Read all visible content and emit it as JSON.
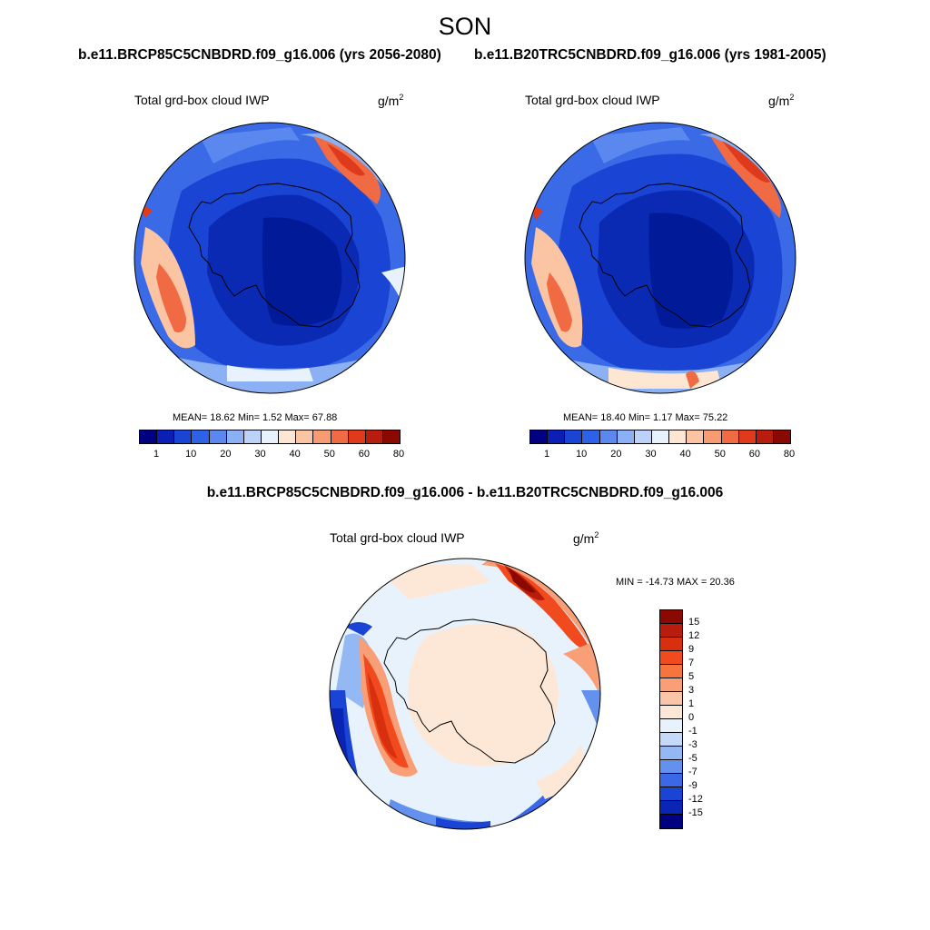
{
  "season": "SON",
  "case1_title": "b.e11.BRCP85C5CNBDRD.f09_g16.006 (yrs 2056-2080)",
  "case2_title": "b.e11.B20TRC5CNBDRD.f09_g16.006 (yrs 1981-2005)",
  "diff_title": "b.e11.BRCP85C5CNBDRD.f09_g16.006 - b.e11.B20TRC5CNBDRD.f09_g16.006",
  "panels": {
    "left": {
      "variable": "Total grd-box cloud IWP",
      "units": "g/m",
      "units_sup": "2",
      "stats": "MEAN=  18.62  Min=    1.52  Max=  67.88"
    },
    "right": {
      "variable": "Total grd-box cloud IWP",
      "units": "g/m",
      "units_sup": "2",
      "stats": "MEAN=  18.40  Min=    1.17  Max=  75.22"
    },
    "diff": {
      "variable": "Total grd-box cloud IWP",
      "units": "g/m",
      "units_sup": "2",
      "stats": "MIN = -14.73 MAX =  20.36"
    }
  },
  "abs_colorbar": {
    "labels": [
      "1",
      "10",
      "20",
      "30",
      "40",
      "50",
      "60",
      "80"
    ],
    "colors": [
      "#000080",
      "#0a1fb4",
      "#1a44d4",
      "#2e62e6",
      "#5a88ee",
      "#8cb0f4",
      "#bcd2f8",
      "#e8f2fc",
      "#fde6d2",
      "#fbc4a2",
      "#f89a72",
      "#f06a44",
      "#e03a1c",
      "#b81c0c",
      "#8a0a02"
    ]
  },
  "diff_colorbar": {
    "labels": [
      "15",
      "12",
      "9",
      "7",
      "5",
      "3",
      "1",
      "0",
      "-1",
      "-3",
      "-5",
      "-7",
      "-9",
      "-12",
      "-15"
    ],
    "colors": [
      "#8a0a02",
      "#b81c0c",
      "#d8300e",
      "#f04a1e",
      "#f6743e",
      "#f99f78",
      "#fbc6a8",
      "#fde8d8",
      "#e8f2fc",
      "#c4daf8",
      "#94b8f4",
      "#6490ee",
      "#3a68e6",
      "#1a44d4",
      "#0a24b4",
      "#000080"
    ]
  }
}
